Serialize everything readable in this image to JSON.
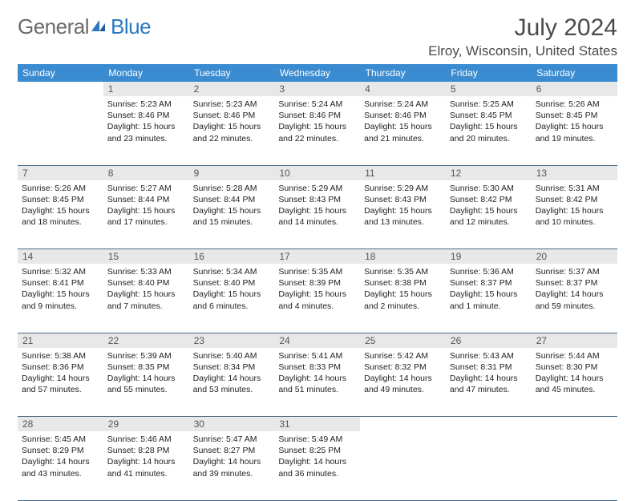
{
  "logo": {
    "text1": "General",
    "text2": "Blue"
  },
  "title": "July 2024",
  "location": "Elroy, Wisconsin, United States",
  "colors": {
    "header_bg": "#3a8bd0",
    "header_text": "#ffffff",
    "daynum_bg": "#e8e8e8",
    "border": "#4a6a85",
    "logo_gray": "#6a6a6a",
    "logo_blue": "#2b78c2"
  },
  "day_headers": [
    "Sunday",
    "Monday",
    "Tuesday",
    "Wednesday",
    "Thursday",
    "Friday",
    "Saturday"
  ],
  "weeks": [
    {
      "nums": [
        "",
        "1",
        "2",
        "3",
        "4",
        "5",
        "6"
      ],
      "cells": [
        null,
        {
          "sunrise": "5:23 AM",
          "sunset": "8:46 PM",
          "daylight": "15 hours and 23 minutes."
        },
        {
          "sunrise": "5:23 AM",
          "sunset": "8:46 PM",
          "daylight": "15 hours and 22 minutes."
        },
        {
          "sunrise": "5:24 AM",
          "sunset": "8:46 PM",
          "daylight": "15 hours and 22 minutes."
        },
        {
          "sunrise": "5:24 AM",
          "sunset": "8:46 PM",
          "daylight": "15 hours and 21 minutes."
        },
        {
          "sunrise": "5:25 AM",
          "sunset": "8:45 PM",
          "daylight": "15 hours and 20 minutes."
        },
        {
          "sunrise": "5:26 AM",
          "sunset": "8:45 PM",
          "daylight": "15 hours and 19 minutes."
        }
      ]
    },
    {
      "nums": [
        "7",
        "8",
        "9",
        "10",
        "11",
        "12",
        "13"
      ],
      "cells": [
        {
          "sunrise": "5:26 AM",
          "sunset": "8:45 PM",
          "daylight": "15 hours and 18 minutes."
        },
        {
          "sunrise": "5:27 AM",
          "sunset": "8:44 PM",
          "daylight": "15 hours and 17 minutes."
        },
        {
          "sunrise": "5:28 AM",
          "sunset": "8:44 PM",
          "daylight": "15 hours and 15 minutes."
        },
        {
          "sunrise": "5:29 AM",
          "sunset": "8:43 PM",
          "daylight": "15 hours and 14 minutes."
        },
        {
          "sunrise": "5:29 AM",
          "sunset": "8:43 PM",
          "daylight": "15 hours and 13 minutes."
        },
        {
          "sunrise": "5:30 AM",
          "sunset": "8:42 PM",
          "daylight": "15 hours and 12 minutes."
        },
        {
          "sunrise": "5:31 AM",
          "sunset": "8:42 PM",
          "daylight": "15 hours and 10 minutes."
        }
      ]
    },
    {
      "nums": [
        "14",
        "15",
        "16",
        "17",
        "18",
        "19",
        "20"
      ],
      "cells": [
        {
          "sunrise": "5:32 AM",
          "sunset": "8:41 PM",
          "daylight": "15 hours and 9 minutes."
        },
        {
          "sunrise": "5:33 AM",
          "sunset": "8:40 PM",
          "daylight": "15 hours and 7 minutes."
        },
        {
          "sunrise": "5:34 AM",
          "sunset": "8:40 PM",
          "daylight": "15 hours and 6 minutes."
        },
        {
          "sunrise": "5:35 AM",
          "sunset": "8:39 PM",
          "daylight": "15 hours and 4 minutes."
        },
        {
          "sunrise": "5:35 AM",
          "sunset": "8:38 PM",
          "daylight": "15 hours and 2 minutes."
        },
        {
          "sunrise": "5:36 AM",
          "sunset": "8:37 PM",
          "daylight": "15 hours and 1 minute."
        },
        {
          "sunrise": "5:37 AM",
          "sunset": "8:37 PM",
          "daylight": "14 hours and 59 minutes."
        }
      ]
    },
    {
      "nums": [
        "21",
        "22",
        "23",
        "24",
        "25",
        "26",
        "27"
      ],
      "cells": [
        {
          "sunrise": "5:38 AM",
          "sunset": "8:36 PM",
          "daylight": "14 hours and 57 minutes."
        },
        {
          "sunrise": "5:39 AM",
          "sunset": "8:35 PM",
          "daylight": "14 hours and 55 minutes."
        },
        {
          "sunrise": "5:40 AM",
          "sunset": "8:34 PM",
          "daylight": "14 hours and 53 minutes."
        },
        {
          "sunrise": "5:41 AM",
          "sunset": "8:33 PM",
          "daylight": "14 hours and 51 minutes."
        },
        {
          "sunrise": "5:42 AM",
          "sunset": "8:32 PM",
          "daylight": "14 hours and 49 minutes."
        },
        {
          "sunrise": "5:43 AM",
          "sunset": "8:31 PM",
          "daylight": "14 hours and 47 minutes."
        },
        {
          "sunrise": "5:44 AM",
          "sunset": "8:30 PM",
          "daylight": "14 hours and 45 minutes."
        }
      ]
    },
    {
      "nums": [
        "28",
        "29",
        "30",
        "31",
        "",
        "",
        ""
      ],
      "cells": [
        {
          "sunrise": "5:45 AM",
          "sunset": "8:29 PM",
          "daylight": "14 hours and 43 minutes."
        },
        {
          "sunrise": "5:46 AM",
          "sunset": "8:28 PM",
          "daylight": "14 hours and 41 minutes."
        },
        {
          "sunrise": "5:47 AM",
          "sunset": "8:27 PM",
          "daylight": "14 hours and 39 minutes."
        },
        {
          "sunrise": "5:49 AM",
          "sunset": "8:25 PM",
          "daylight": "14 hours and 36 minutes."
        },
        null,
        null,
        null
      ]
    }
  ],
  "labels": {
    "sunrise": "Sunrise: ",
    "sunset": "Sunset: ",
    "daylight": "Daylight: "
  }
}
